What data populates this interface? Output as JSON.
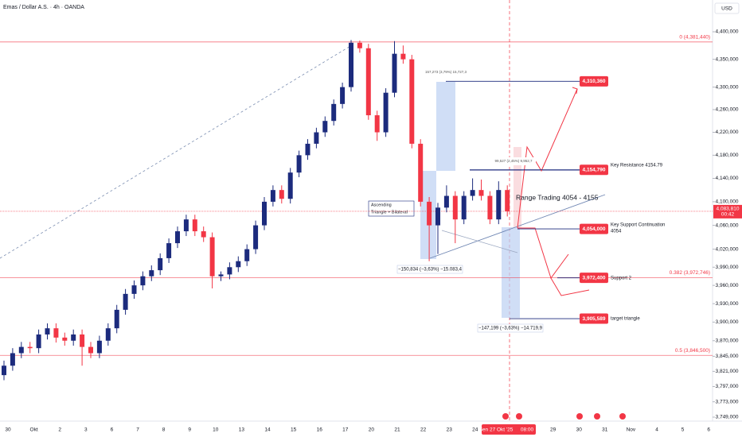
{
  "chart_data": {
    "type": "candlestick",
    "title": "Emas / Dollar A.S. · 4h · OANDA",
    "currency": "USD",
    "log": true,
    "up_color": "#1c2b7d",
    "down_color": "#f23645",
    "ylim": [
      3749000,
      4400000
    ],
    "yticks": [
      {
        "value": 4400000,
        "label": "4,400,000"
      },
      {
        "value": 4350000,
        "label": "4,350,000"
      },
      {
        "value": 4300000,
        "label": "4,300,000"
      },
      {
        "value": 4260000,
        "label": "4,260,000"
      },
      {
        "value": 4220000,
        "label": "4,220,000"
      },
      {
        "value": 4180000,
        "label": "4,180,000"
      },
      {
        "value": 4140000,
        "label": "4,140,000"
      },
      {
        "value": 4100000,
        "label": "4,100,000"
      },
      {
        "value": 4060000,
        "label": "4,060,000"
      },
      {
        "value": 4020000,
        "label": "4,020,000"
      },
      {
        "value": 3990000,
        "label": "3,990,000"
      },
      {
        "value": 3960000,
        "label": "3,960,000"
      },
      {
        "value": 3930000,
        "label": "3,930,000"
      },
      {
        "value": 3900000,
        "label": "3,900,000"
      },
      {
        "value": 3870000,
        "label": "3,870,000"
      },
      {
        "value": 3845000,
        "label": "3,845,000"
      },
      {
        "value": 3821000,
        "label": "3,821,000"
      },
      {
        "value": 3797000,
        "label": "3,797,000"
      },
      {
        "value": 3773000,
        "label": "3,773,000"
      },
      {
        "value": 3749000,
        "label": "3,749,000"
      }
    ],
    "x_labels": [
      "30",
      "Okt",
      "2",
      "3",
      "6",
      "7",
      "8",
      "9",
      "10",
      "13",
      "14",
      "15",
      "16",
      "17",
      "20",
      "21",
      "22",
      "23",
      "24",
      null,
      null,
      "29",
      "30",
      "31",
      "Nov",
      "4",
      "5",
      "6"
    ],
    "crosshair_label": "Sen 27 Okt '25",
    "crosshair_time": "08:00",
    "candles": [
      [
        3815000,
        3838000,
        3807000,
        3830000
      ],
      [
        3830000,
        3858000,
        3822000,
        3850000
      ],
      [
        3850000,
        3868000,
        3842000,
        3860000
      ],
      [
        3860000,
        3868000,
        3850000,
        3858000
      ],
      [
        3858000,
        3888000,
        3850000,
        3880000
      ],
      [
        3880000,
        3898000,
        3872000,
        3890000
      ],
      [
        3890000,
        3898000,
        3867000,
        3875000
      ],
      [
        3875000,
        3883000,
        3862000,
        3870000
      ],
      [
        3870000,
        3888000,
        3862000,
        3880000
      ],
      [
        3880000,
        3888000,
        3830000,
        3860000
      ],
      [
        3860000,
        3868000,
        3842000,
        3850000
      ],
      [
        3850000,
        3878000,
        3842000,
        3870000
      ],
      [
        3870000,
        3898000,
        3862000,
        3890000
      ],
      [
        3890000,
        3928000,
        3882000,
        3920000
      ],
      [
        3920000,
        3954000,
        3912000,
        3946000
      ],
      [
        3946000,
        3968000,
        3938000,
        3960000
      ],
      [
        3960000,
        3983000,
        3952000,
        3975000
      ],
      [
        3975000,
        3993000,
        3967000,
        3985000
      ],
      [
        3985000,
        4013000,
        3977000,
        4005000
      ],
      [
        4005000,
        4038000,
        3997000,
        4030000
      ],
      [
        4030000,
        4058000,
        4022000,
        4050000
      ],
      [
        4050000,
        4078000,
        4042000,
        4070000
      ],
      [
        4070000,
        4078000,
        4042000,
        4050000
      ],
      [
        4050000,
        4058000,
        4032000,
        4040000
      ],
      [
        4040000,
        4048000,
        3955000,
        3975000
      ],
      [
        3975000,
        3983000,
        3967000,
        3978000
      ],
      [
        3978000,
        3998000,
        3970000,
        3990000
      ],
      [
        3990000,
        4008000,
        3982000,
        4000000
      ],
      [
        4000000,
        4028000,
        3992000,
        4020000
      ],
      [
        4020000,
        4068000,
        4012000,
        4060000
      ],
      [
        4060000,
        4108000,
        4052000,
        4100000
      ],
      [
        4100000,
        4128000,
        4092000,
        4120000
      ],
      [
        4120000,
        4128000,
        4097000,
        4105000
      ],
      [
        4105000,
        4158000,
        4097000,
        4150000
      ],
      [
        4150000,
        4188000,
        4142000,
        4180000
      ],
      [
        4180000,
        4208000,
        4172000,
        4200000
      ],
      [
        4200000,
        4228000,
        4192000,
        4220000
      ],
      [
        4220000,
        4248000,
        4212000,
        4240000
      ],
      [
        4240000,
        4278000,
        4232000,
        4270000
      ],
      [
        4270000,
        4308000,
        4262000,
        4300000
      ],
      [
        4300000,
        4385000,
        4292000,
        4380000
      ],
      [
        4380000,
        4384000,
        4362000,
        4370000
      ],
      [
        4370000,
        4378000,
        4242000,
        4250000
      ],
      [
        4250000,
        4258000,
        4205000,
        4220000
      ],
      [
        4220000,
        4298000,
        4212000,
        4290000
      ],
      [
        4290000,
        4383000,
        4282000,
        4360000
      ],
      [
        4360000,
        4375000,
        4342000,
        4350000
      ],
      [
        4350000,
        4358000,
        4192000,
        4200000
      ],
      [
        4200000,
        4208000,
        4092000,
        4100000
      ],
      [
        4100000,
        4108000,
        4000000,
        4060000
      ],
      [
        4060000,
        4098000,
        4012000,
        4090000
      ],
      [
        4090000,
        4128000,
        4082000,
        4110000
      ],
      [
        4110000,
        4118000,
        4030000,
        4070000
      ],
      [
        4070000,
        4118000,
        4062000,
        4110000
      ],
      [
        4110000,
        4140000,
        4102000,
        4120000
      ],
      [
        4120000,
        4138000,
        4102000,
        4110000
      ],
      [
        4110000,
        4118000,
        4062000,
        4070000
      ],
      [
        4070000,
        4135000,
        4062000,
        4120000
      ],
      [
        4120000,
        4128000,
        4075000,
        4083810
      ]
    ],
    "last_price": {
      "value": 4083810,
      "label": "4,083,810"
    },
    "countdown": "00:42",
    "fib_levels": [
      {
        "value": 4381440,
        "label": "0 (4,381,440)"
      },
      {
        "value": 3972746,
        "label": "0.382 (3,972,746)"
      },
      {
        "value": 3846500,
        "label": "0.5 (3,846,500)"
      }
    ],
    "targets": [
      {
        "value": 4310360,
        "label": "4,310,360",
        "note": []
      },
      {
        "value": 4154790,
        "label": "4,154,790",
        "note": [
          "Key Resistance 4154.79"
        ]
      },
      {
        "value": 4054000,
        "label": "4,054,000",
        "note": [
          "Key Support Continuation",
          "4054"
        ]
      },
      {
        "value": 3972400,
        "label": "3,972,400",
        "note": [
          "Support 2"
        ]
      },
      {
        "value": 3905589,
        "label": "3,905,589",
        "note": [
          "target triangle"
        ]
      }
    ],
    "measurements": [
      "157,273 (3,79%) 15,727,3",
      "99,527 (2,45%) 9,952,7",
      "−150,834 (−3,63%) −15.083,4",
      "−147,199 (−3,63%) −14.719,9"
    ],
    "range_label": "Range Trading 4054 - 4155",
    "pattern_label": [
      "Ascending",
      "Triangle + Bilateral"
    ]
  }
}
